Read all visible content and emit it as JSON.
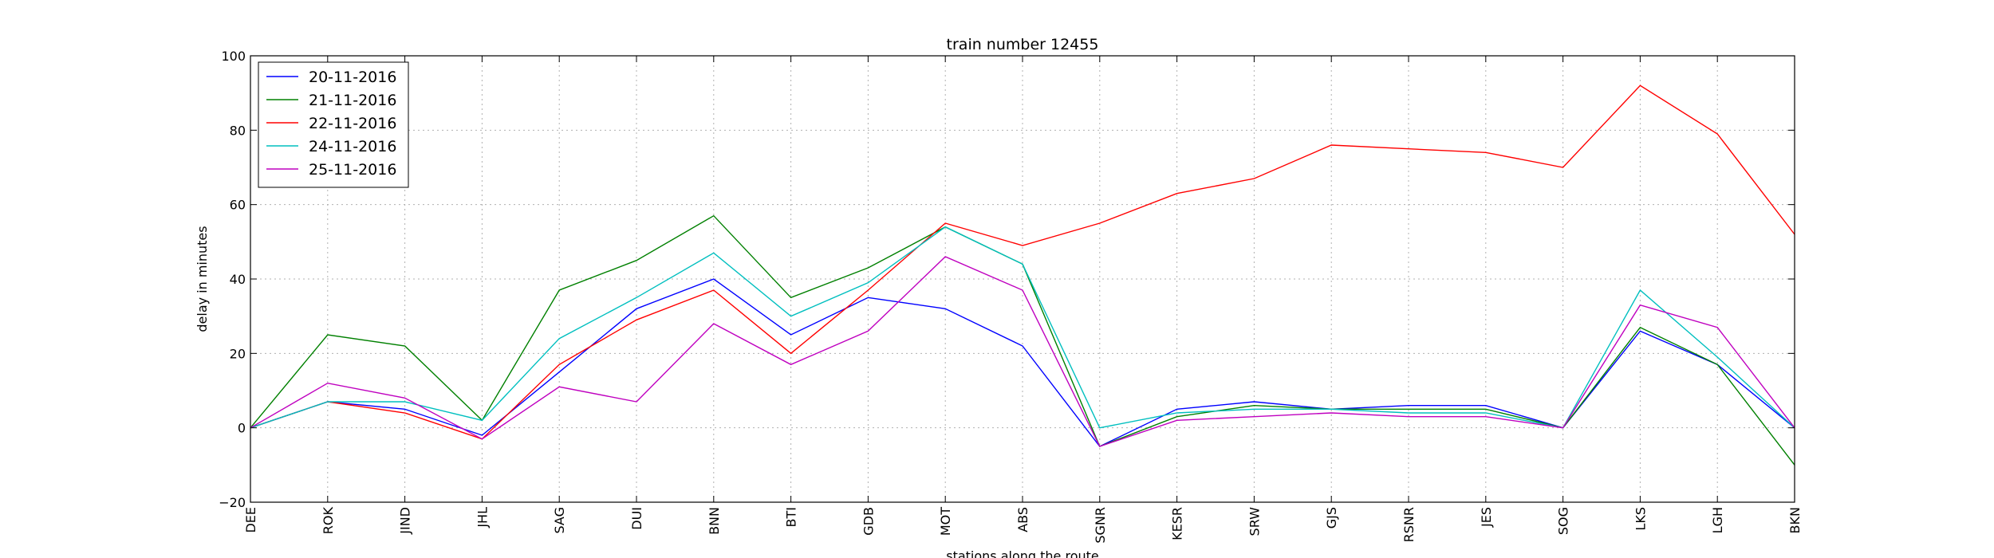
{
  "chart_data": {
    "type": "line",
    "title": "train number 12455",
    "xlabel": "stations along the route",
    "ylabel": "delay in minutes",
    "ylim": [
      -20,
      100
    ],
    "yticks": [
      -20,
      0,
      20,
      40,
      60,
      80,
      100
    ],
    "grid": true,
    "legend_position": "top-left",
    "categories": [
      "DEE",
      "ROK",
      "JIND",
      "JHL",
      "SAG",
      "DUI",
      "BNN",
      "BTI",
      "GDB",
      "MOT",
      "ABS",
      "SGNR",
      "KESR",
      "SRW",
      "GJS",
      "RSNR",
      "JES",
      "SOG",
      "LKS",
      "LGH",
      "BKN"
    ],
    "series": [
      {
        "name": "20-11-2016",
        "color": "#0000ff",
        "values": [
          0,
          7,
          5,
          -2,
          15,
          32,
          40,
          25,
          35,
          32,
          22,
          -5,
          5,
          7,
          5,
          6,
          6,
          0,
          26,
          17,
          0
        ]
      },
      {
        "name": "21-11-2016",
        "color": "#008000",
        "values": [
          0,
          25,
          22,
          2,
          37,
          45,
          57,
          35,
          43,
          54,
          44,
          -5,
          3,
          6,
          5,
          5,
          5,
          0,
          27,
          17,
          -10
        ]
      },
      {
        "name": "22-11-2016",
        "color": "#ff0000",
        "values": [
          0,
          7,
          4,
          -3,
          17,
          29,
          37,
          20,
          37,
          55,
          49,
          55,
          63,
          67,
          76,
          75,
          74,
          70,
          92,
          79,
          52
        ]
      },
      {
        "name": "24-11-2016",
        "color": "#00bfbf",
        "values": [
          0,
          7,
          7,
          2,
          24,
          35,
          47,
          30,
          39,
          54,
          44,
          0,
          4,
          5,
          5,
          4,
          4,
          0,
          37,
          19,
          0
        ]
      },
      {
        "name": "25-11-2016",
        "color": "#bf00bf",
        "values": [
          0,
          12,
          8,
          -3,
          11,
          7,
          28,
          17,
          26,
          46,
          37,
          -5,
          2,
          3,
          4,
          3,
          3,
          0,
          33,
          27,
          0
        ]
      }
    ]
  }
}
